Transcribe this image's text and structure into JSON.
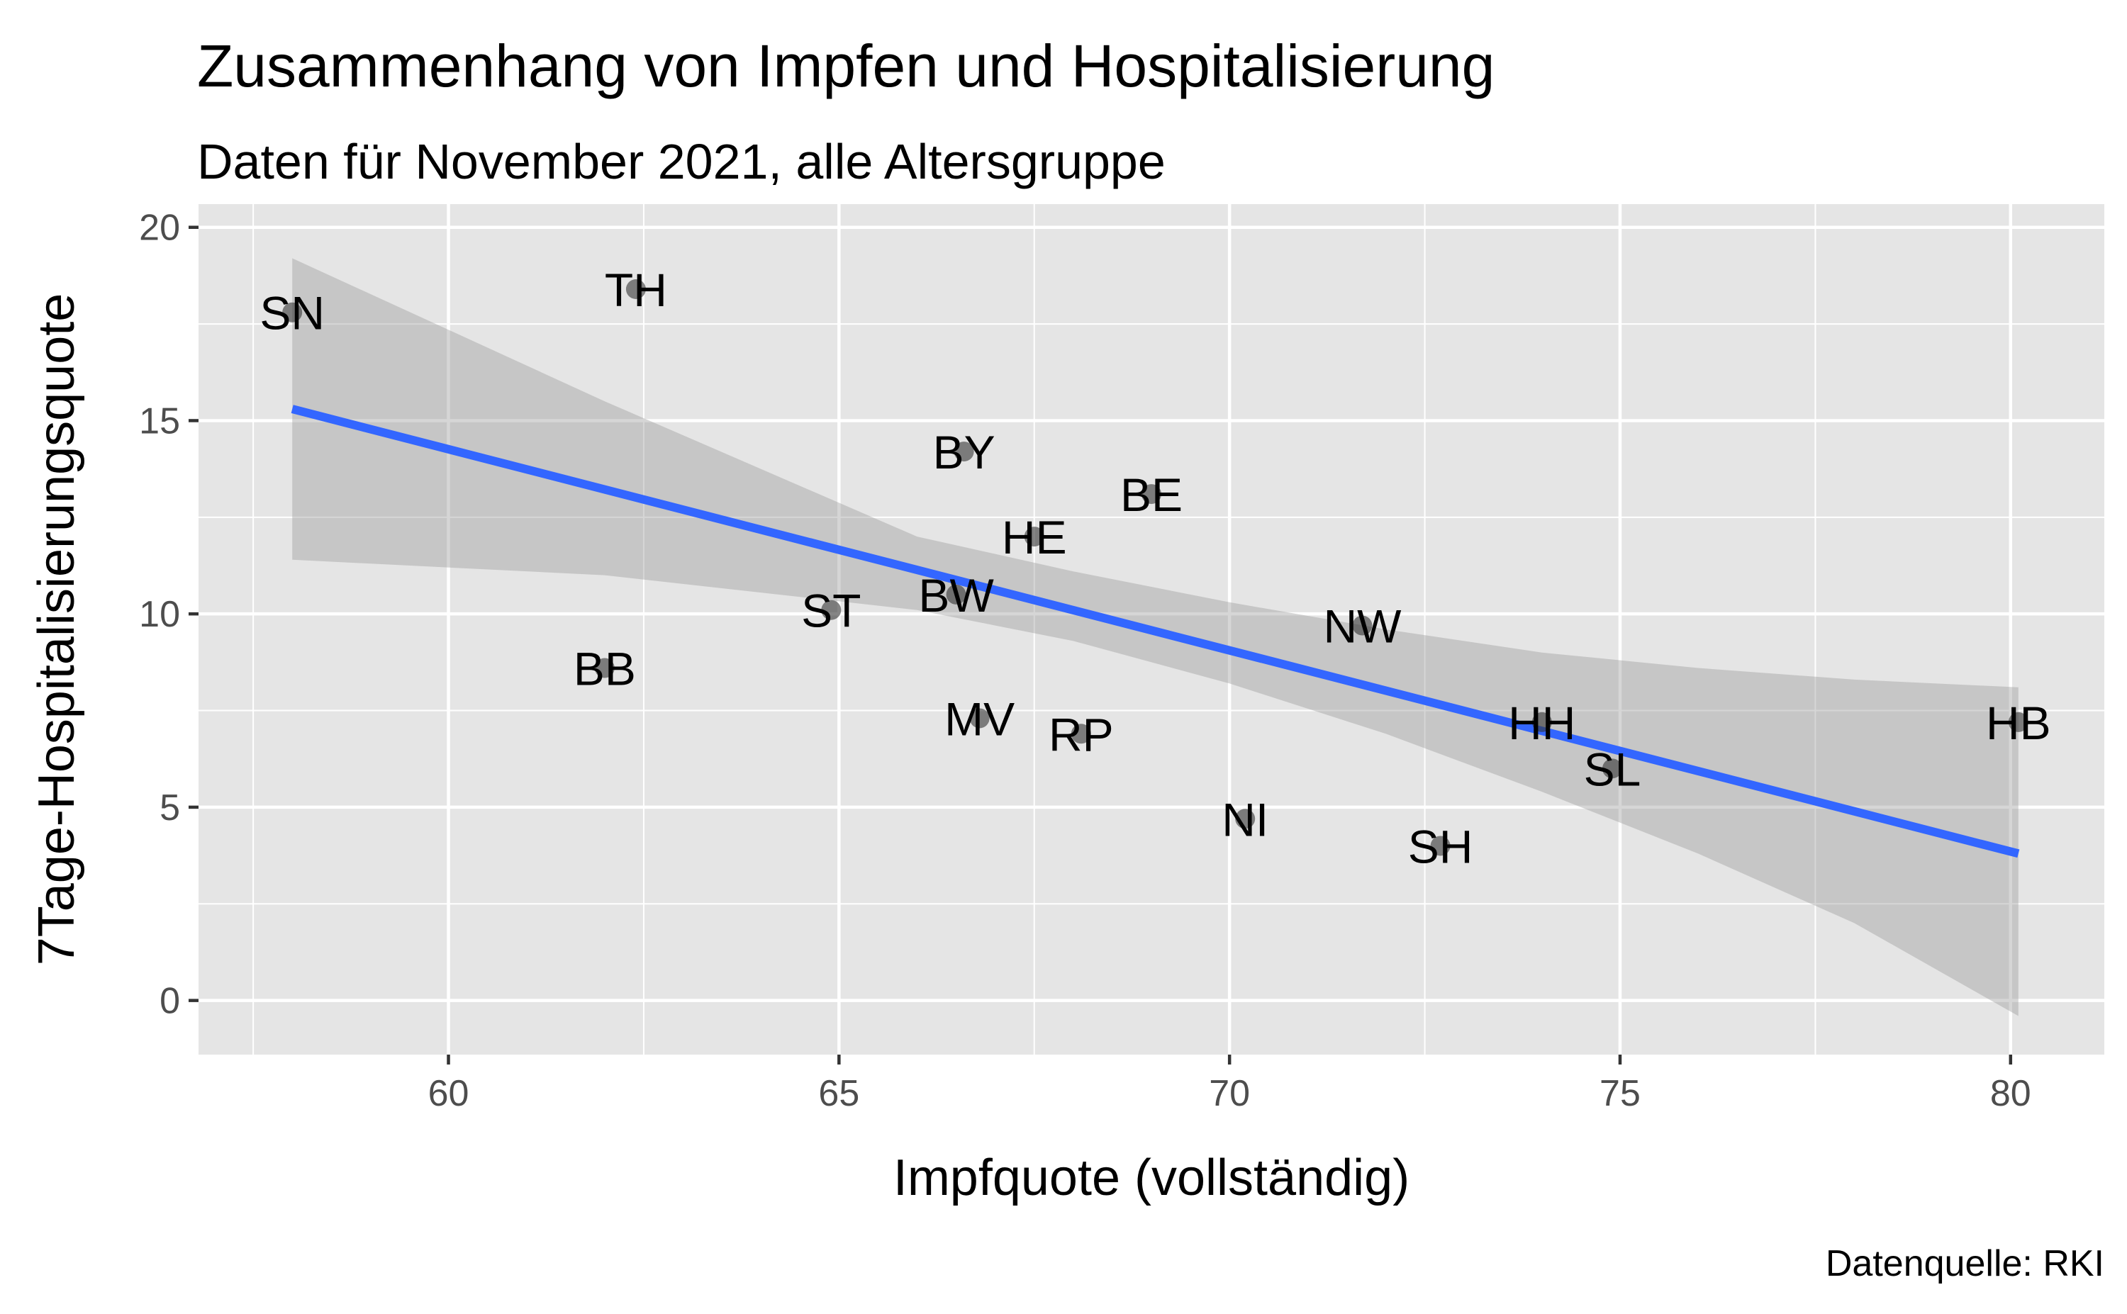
{
  "chart_data": {
    "type": "scatter",
    "title": "Zusammenhang von Impfen und Hospitalisierung",
    "subtitle": "Daten für November 2021, alle Altersgruppe",
    "xlabel": "Impfquote (vollständig)",
    "ylabel": "7Tage-Hospitalisierungsquote",
    "caption": "Datenquelle: RKI",
    "xlim": [
      56.8,
      81.2
    ],
    "ylim": [
      -1.4,
      20.6
    ],
    "xticks": [
      60,
      65,
      70,
      75,
      80
    ],
    "yticks": [
      0,
      5,
      10,
      15,
      20
    ],
    "grid": true,
    "points": [
      {
        "label": "SN",
        "x": 58.0,
        "y": 17.8
      },
      {
        "label": "TH",
        "x": 62.4,
        "y": 18.4
      },
      {
        "label": "BY",
        "x": 66.6,
        "y": 14.2
      },
      {
        "label": "BE",
        "x": 69.0,
        "y": 13.1
      },
      {
        "label": "HE",
        "x": 67.5,
        "y": 12.0
      },
      {
        "label": "ST",
        "x": 64.9,
        "y": 10.1
      },
      {
        "label": "BW",
        "x": 66.5,
        "y": 10.5
      },
      {
        "label": "NW",
        "x": 71.7,
        "y": 9.7
      },
      {
        "label": "BB",
        "x": 62.0,
        "y": 8.6
      },
      {
        "label": "MV",
        "x": 66.8,
        "y": 7.3
      },
      {
        "label": "RP",
        "x": 68.1,
        "y": 6.9
      },
      {
        "label": "HH",
        "x": 74.0,
        "y": 7.2
      },
      {
        "label": "SL",
        "x": 74.9,
        "y": 6.0
      },
      {
        "label": "HB",
        "x": 80.1,
        "y": 7.2
      },
      {
        "label": "NI",
        "x": 70.2,
        "y": 4.7
      },
      {
        "label": "SH",
        "x": 72.7,
        "y": 4.0
      }
    ],
    "trend": {
      "x": [
        58.0,
        80.1
      ],
      "y": [
        15.3,
        3.8
      ]
    },
    "confidence_band": {
      "x": [
        58.0,
        62.0,
        66.0,
        68.0,
        70.0,
        72.0,
        74.0,
        76.0,
        78.0,
        80.1
      ],
      "lower": [
        11.4,
        11.0,
        10.1,
        9.3,
        8.2,
        6.9,
        5.4,
        3.8,
        2.0,
        -0.4
      ],
      "upper": [
        19.2,
        15.5,
        12.0,
        11.1,
        10.3,
        9.6,
        9.0,
        8.6,
        8.3,
        8.1
      ]
    },
    "colors": {
      "panel": "#e5e5e5",
      "grid": "#ffffff",
      "trend": "#3366ff",
      "band": "#999999",
      "point": "#333333"
    }
  }
}
